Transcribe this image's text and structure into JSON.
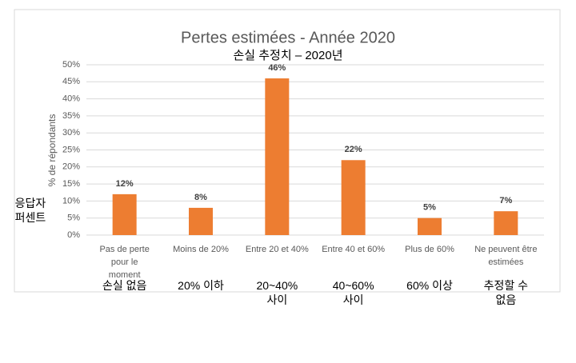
{
  "chart_data": {
    "type": "bar",
    "title": "Pertes estimées - Année 2020",
    "subtitle": "손실 추정치 – 2020년",
    "y_axis_label": "% de répondants",
    "y_axis_label_translation": "응답자 퍼센트",
    "categories": [
      "Pas de perte pour le moment",
      "Moins de 20%",
      "Entre 20 et 40%",
      "Entre 40 et 60%",
      "Plus de 60%",
      "Ne peuvent être estimées"
    ],
    "category_translations": [
      "손실 없음",
      "20% 이하",
      "20~40% 사이",
      "40~60% 사이",
      "60% 이상",
      "추정할 수 없음"
    ],
    "values": [
      12,
      8,
      46,
      22,
      5,
      7
    ],
    "value_labels": [
      "12%",
      "8%",
      "46%",
      "22%",
      "5%",
      "7%"
    ],
    "color": "#ed7d31",
    "ylim": [
      0,
      50
    ],
    "yticks": [
      {
        "value": 0,
        "label": "0%"
      },
      {
        "value": 5,
        "label": "5%"
      },
      {
        "value": 10,
        "label": "10%"
      },
      {
        "value": 15,
        "label": "15%"
      },
      {
        "value": 20,
        "label": "20%"
      },
      {
        "value": 25,
        "label": "25%"
      },
      {
        "value": 30,
        "label": "30%"
      },
      {
        "value": 35,
        "label": "35%"
      },
      {
        "value": 40,
        "label": "40%"
      },
      {
        "value": 45,
        "label": "45%"
      },
      {
        "value": 50,
        "label": "50%"
      }
    ],
    "grid": true
  }
}
